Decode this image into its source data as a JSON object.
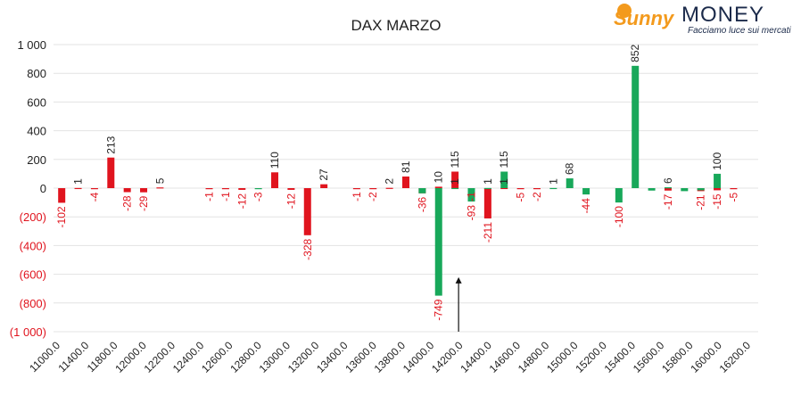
{
  "chart_data": {
    "type": "bar",
    "title": "DAX MARZO",
    "xlabel": "",
    "ylabel": "",
    "ylim": [
      -1000,
      1000
    ],
    "y_ticks": [
      1000,
      800,
      600,
      400,
      200,
      0,
      -200,
      -400,
      -600,
      -800,
      -1000
    ],
    "y_tick_labels": [
      "1 000",
      "800",
      "600",
      "400",
      "200",
      "0",
      "(200)",
      "(400)",
      "(600)",
      "(800)",
      "(1 000)"
    ],
    "x_tick_labels": [
      "11000.0",
      "11400.0",
      "11800.0",
      "12000.0",
      "12200.0",
      "12400.0",
      "12600.0",
      "12800.0",
      "13000.0",
      "13200.0",
      "13400.0",
      "13600.0",
      "13800.0",
      "14000.0",
      "14200.0",
      "14400.0",
      "14600.0",
      "14800.0",
      "15000.0",
      "15200.0",
      "15400.0",
      "15600.0",
      "15800.0",
      "16000.0",
      "16200.0"
    ],
    "grid": true,
    "colors": {
      "put": "#e0141e",
      "call": "#18a85a"
    },
    "series": [
      {
        "color": "#e0141e",
        "points": [
          {
            "slot": 0,
            "value": -102,
            "label": "-102"
          },
          {
            "slot": 1,
            "value": 1,
            "label": "1"
          },
          {
            "slot": 2,
            "value": -4,
            "label": "-4"
          },
          {
            "slot": 3,
            "value": 213,
            "label": "213"
          },
          {
            "slot": 4,
            "value": -28,
            "label": "-28"
          },
          {
            "slot": 5,
            "value": -29,
            "label": "-29"
          },
          {
            "slot": 6,
            "value": 5,
            "label": "5"
          },
          {
            "slot": 9,
            "value": -1,
            "label": "-1"
          },
          {
            "slot": 10,
            "value": -1,
            "label": "-1"
          },
          {
            "slot": 11,
            "value": -12,
            "label": "-12"
          },
          {
            "slot": 13,
            "value": 110,
            "label": "110"
          },
          {
            "slot": 14,
            "value": -12,
            "label": "-12"
          },
          {
            "slot": 15,
            "value": -328,
            "label": "-328"
          },
          {
            "slot": 16,
            "value": 27,
            "label": "27"
          },
          {
            "slot": 18,
            "value": -1,
            "label": "-1"
          },
          {
            "slot": 19,
            "value": -2,
            "label": "-2"
          },
          {
            "slot": 20,
            "value": 2,
            "label": "2"
          },
          {
            "slot": 21,
            "value": 81,
            "label": "81"
          },
          {
            "slot": 22,
            "value": -36,
            "label": "-36"
          },
          {
            "slot": 23,
            "value": 10,
            "label": "10"
          },
          {
            "slot": 24,
            "value": 115,
            "label": "115"
          },
          {
            "slot": 25,
            "value": -1,
            "label": "-1"
          },
          {
            "slot": 26,
            "value": -211,
            "label": "-211"
          },
          {
            "slot": 27,
            "value": 1,
            "label": "1"
          },
          {
            "slot": 28,
            "value": -5,
            "label": "-5"
          },
          {
            "slot": 29,
            "value": -2,
            "label": "-2"
          },
          {
            "slot": 37,
            "value": -17,
            "label": "-17"
          },
          {
            "slot": 39,
            "value": -21,
            "label": "-21"
          },
          {
            "slot": 40,
            "value": -15,
            "label": "-15"
          },
          {
            "slot": 41,
            "value": -5,
            "label": "-5"
          }
        ]
      },
      {
        "color": "#18a85a",
        "points": [
          {
            "slot": 12,
            "value": -3,
            "label": "-3"
          },
          {
            "slot": 22,
            "value": -36,
            "label": ""
          },
          {
            "slot": 23,
            "value": -749,
            "label": "-749"
          },
          {
            "slot": 24,
            "value": 1,
            "label": "1"
          },
          {
            "slot": 25,
            "value": -93,
            "label": "-93"
          },
          {
            "slot": 26,
            "value": 1,
            "label": "1"
          },
          {
            "slot": 27,
            "value": 115,
            "label": "115"
          },
          {
            "slot": 30,
            "value": 1,
            "label": "1"
          },
          {
            "slot": 31,
            "value": 68,
            "label": "68"
          },
          {
            "slot": 32,
            "value": -44,
            "label": "-44"
          },
          {
            "slot": 34,
            "value": -100,
            "label": "-100"
          },
          {
            "slot": 35,
            "value": 852,
            "label": "852"
          },
          {
            "slot": 36,
            "value": -17,
            "label": ""
          },
          {
            "slot": 37,
            "value": 6,
            "label": "6"
          },
          {
            "slot": 38,
            "value": -21,
            "label": ""
          },
          {
            "slot": 39,
            "value": -15,
            "label": ""
          },
          {
            "slot": 40,
            "value": 100,
            "label": "100"
          }
        ]
      }
    ],
    "annotations": [
      {
        "type": "arrow",
        "at_value": -749,
        "direction": "up"
      }
    ]
  },
  "logo": {
    "brand_part1": "Sunny",
    "brand_part2": "MONEY",
    "tagline": "Facciamo luce sui mercati",
    "sun_color": "#f39a1d",
    "brand_color": "#1b2a4a"
  }
}
